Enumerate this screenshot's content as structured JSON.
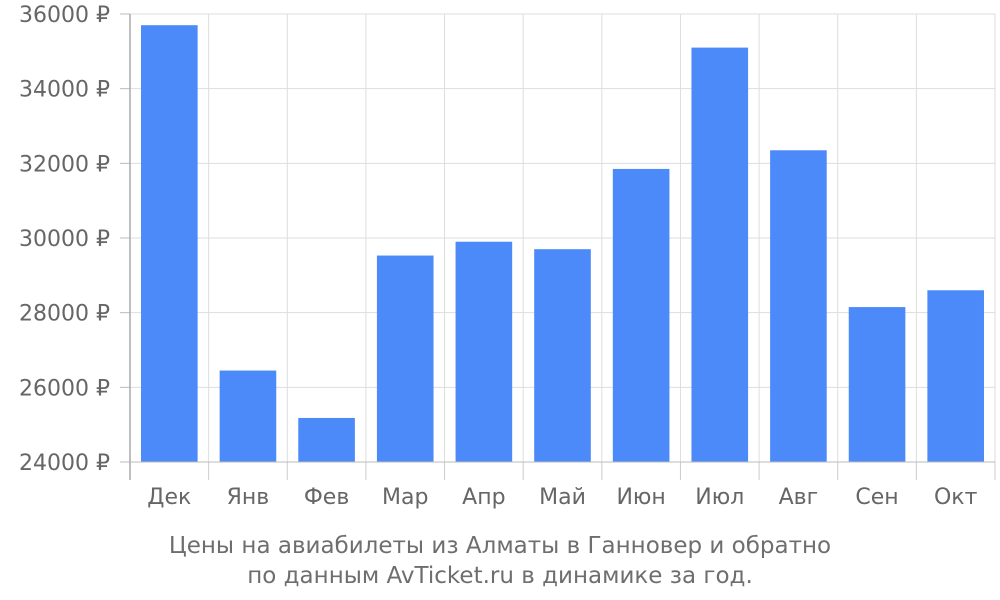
{
  "chart_data": {
    "type": "bar",
    "categories": [
      "Дек",
      "Янв",
      "Фев",
      "Мар",
      "Апр",
      "Май",
      "Июн",
      "Июл",
      "Авг",
      "Сен",
      "Окт"
    ],
    "values": [
      35700,
      26450,
      25180,
      29530,
      29900,
      29700,
      31850,
      35100,
      32350,
      28150,
      28600
    ],
    "ylim": [
      24000,
      36000
    ],
    "yticks": [
      24000,
      26000,
      28000,
      30000,
      32000,
      34000,
      36000
    ],
    "ytick_labels": [
      "24000 ₽",
      "26000 ₽",
      "28000 ₽",
      "30000 ₽",
      "32000 ₽",
      "34000 ₽",
      "36000 ₽"
    ],
    "grid": true,
    "bar_color": "#4d8af9"
  },
  "caption": {
    "line1": "Цены на авиабилеты из Алматы в Ганновер и обратно",
    "line2": "по данным AvTicket.ru в динамике за год."
  }
}
